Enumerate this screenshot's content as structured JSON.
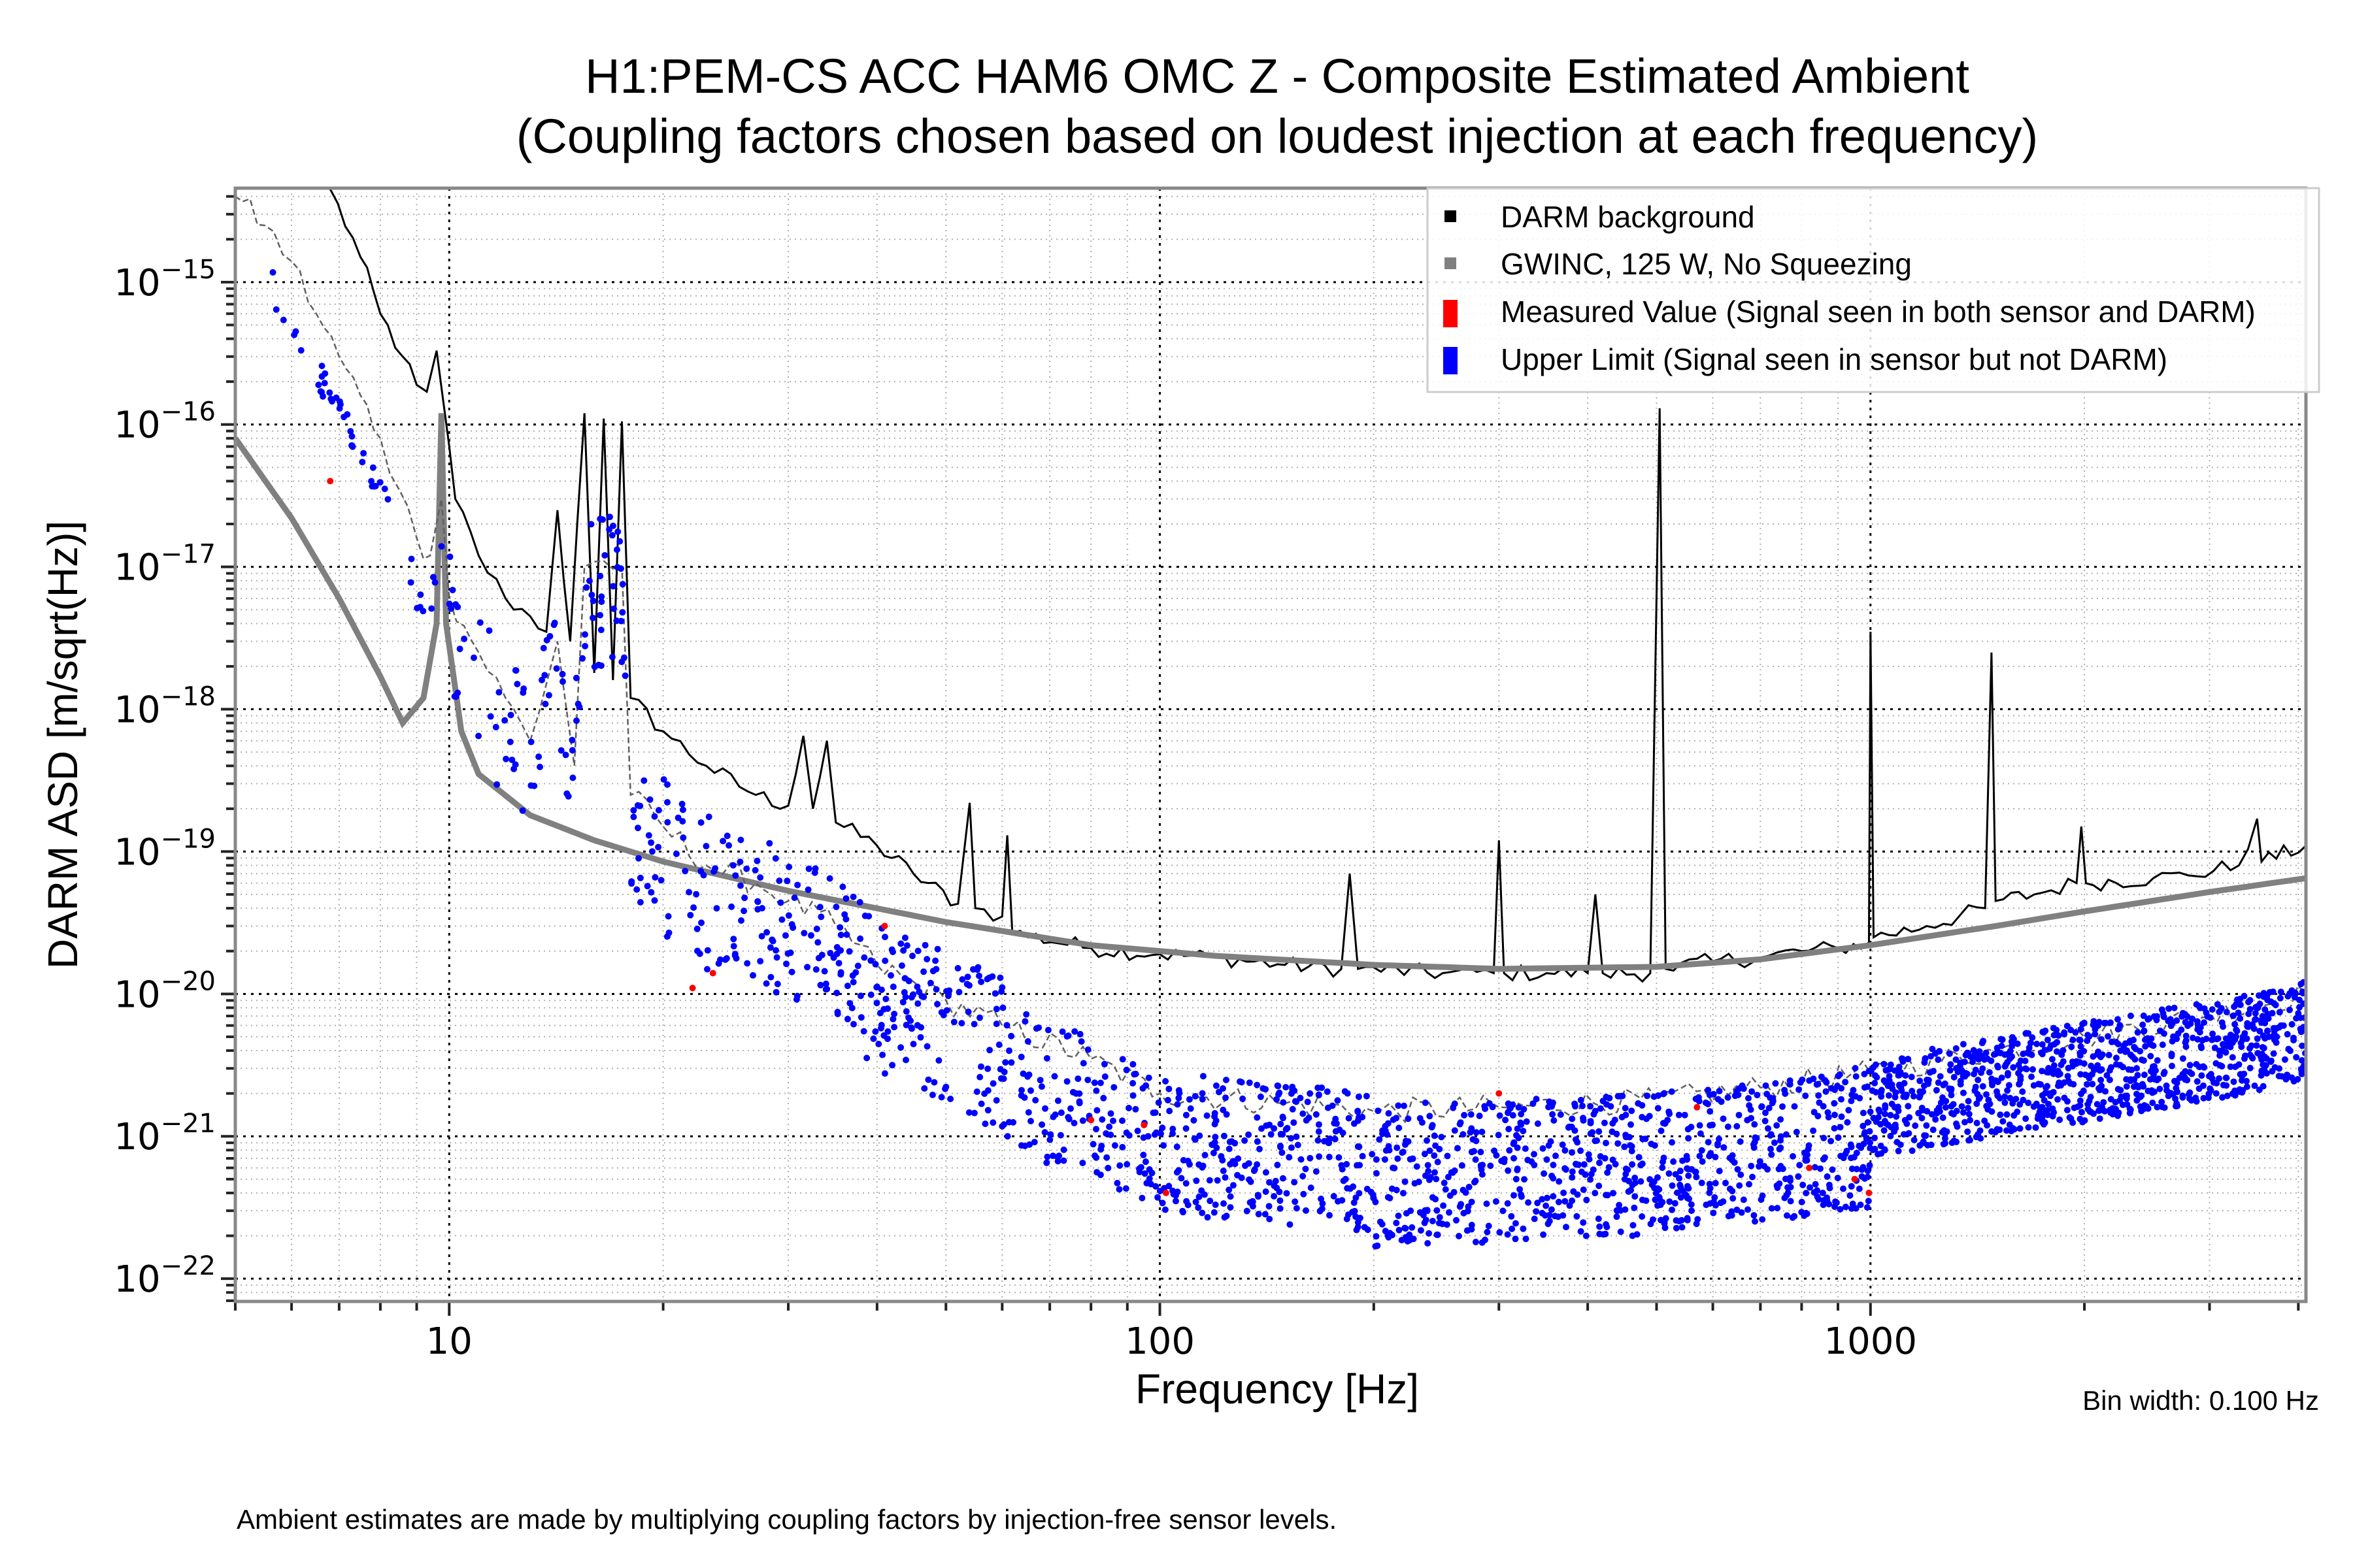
{
  "chart_data": {
    "type": "scatter",
    "title": "H1:PEM-CS ACC HAM6 OMC Z - Composite Estimated Ambient",
    "subtitle": "(Coupling factors chosen based on loudest injection at each frequency)",
    "xlabel": "Frequency [Hz]",
    "ylabel": "DARM ASD [m/sqrt(Hz)]",
    "xscale": "log",
    "yscale": "log",
    "xlim": [
      5,
      4100
    ],
    "ylim_exp": [
      -22.16,
      -14.34
    ],
    "x_ticks": [
      {
        "value": 10,
        "label": "10"
      },
      {
        "value": 100,
        "label": "100"
      },
      {
        "value": 1000,
        "label": "1000"
      }
    ],
    "y_ticks": [
      {
        "exp": -15,
        "base": "10",
        "sup": "−15"
      },
      {
        "exp": -16,
        "base": "10",
        "sup": "−16"
      },
      {
        "exp": -17,
        "base": "10",
        "sup": "−17"
      },
      {
        "exp": -18,
        "base": "10",
        "sup": "−18"
      },
      {
        "exp": -19,
        "base": "10",
        "sup": "−19"
      },
      {
        "exp": -20,
        "base": "10",
        "sup": "−20"
      },
      {
        "exp": -21,
        "base": "10",
        "sup": "−21"
      },
      {
        "exp": -22,
        "base": "10",
        "sup": "−22"
      }
    ],
    "grid": true,
    "legend_position": "top-right",
    "legend": [
      {
        "label": "DARM background",
        "color": "#000000",
        "kind": "line"
      },
      {
        "label": "GWINC, 125 W, No Squeezing",
        "color": "#808080",
        "kind": "line"
      },
      {
        "label": "Measured Value (Signal seen in both sensor and DARM)",
        "color": "#ff0000",
        "kind": "marker"
      },
      {
        "label": "Upper Limit (Signal seen in sensor but not DARM)",
        "color": "#0000ff",
        "kind": "marker"
      }
    ],
    "series": [
      {
        "name": "DARM background",
        "color": "#000000",
        "style": "solid-thin",
        "points": [
          [
            6.8,
            4.5e-15
          ],
          [
            7.5,
            1.5e-15
          ],
          [
            8.0,
            6e-16
          ],
          [
            8.6,
            3e-16
          ],
          [
            9.0,
            1.9e-16
          ],
          [
            9.3,
            1.7e-16
          ],
          [
            9.6,
            3.3e-16
          ],
          [
            9.8,
            1.5e-16
          ],
          [
            10.2,
            3e-17
          ],
          [
            11,
            1.2e-17
          ],
          [
            12,
            6e-18
          ],
          [
            13,
            4.5e-18
          ],
          [
            13.7,
            3.5e-18
          ],
          [
            14.2,
            2.5e-17
          ],
          [
            14.8,
            3e-18
          ],
          [
            15.5,
            1.2e-16
          ],
          [
            16.0,
            1.8e-18
          ],
          [
            16.5,
            1.1e-16
          ],
          [
            17.0,
            1.6e-18
          ],
          [
            17.5,
            1.05e-16
          ],
          [
            18,
            1.2e-18
          ],
          [
            20,
            7e-19
          ],
          [
            23,
            4e-19
          ],
          [
            27,
            2.5e-19
          ],
          [
            30,
            2.1e-19
          ],
          [
            31.5,
            6.5e-19
          ],
          [
            32.5,
            2e-19
          ],
          [
            34,
            6e-19
          ],
          [
            35,
            1.6e-19
          ],
          [
            40,
            1.1e-19
          ],
          [
            45,
            7e-20
          ],
          [
            52,
            4.3e-20
          ],
          [
            54,
            2.2e-19
          ],
          [
            55,
            4e-20
          ],
          [
            60,
            3.5e-20
          ],
          [
            61,
            1.3e-19
          ],
          [
            62,
            2.7e-20
          ],
          [
            80,
            2.1e-20
          ],
          [
            100,
            1.9e-20
          ],
          [
            120,
            1.8e-20
          ],
          [
            150,
            1.6e-20
          ],
          [
            180,
            1.5e-20
          ],
          [
            185,
            7e-20
          ],
          [
            190,
            1.5e-20
          ],
          [
            250,
            1.4e-20
          ],
          [
            295,
            1.4e-20
          ],
          [
            300,
            1.2e-19
          ],
          [
            305,
            1.4e-20
          ],
          [
            350,
            1.4e-20
          ],
          [
            400,
            1.4e-20
          ],
          [
            410,
            5e-20
          ],
          [
            420,
            1.4e-20
          ],
          [
            490,
            1.4e-20
          ],
          [
            505,
            1.3e-16
          ],
          [
            515,
            1.5e-20
          ],
          [
            600,
            1.7e-20
          ],
          [
            700,
            1.8e-20
          ],
          [
            800,
            2e-20
          ],
          [
            900,
            2.1e-20
          ],
          [
            995,
            2.3e-20
          ],
          [
            1000,
            3.5e-18
          ],
          [
            1010,
            2.5e-20
          ],
          [
            1200,
            3e-20
          ],
          [
            1450,
            4e-20
          ],
          [
            1480,
            2.5e-18
          ],
          [
            1500,
            4.5e-20
          ],
          [
            1700,
            5e-20
          ],
          [
            1950,
            6e-20
          ],
          [
            1980,
            1.5e-19
          ],
          [
            2010,
            6e-20
          ],
          [
            2500,
            6.5e-20
          ],
          [
            2800,
            6.8e-20
          ],
          [
            3300,
            8e-20
          ],
          [
            3500,
            1.7e-19
          ],
          [
            3550,
            8.5e-20
          ],
          [
            4100,
            1.1e-19
          ]
        ]
      },
      {
        "name": "GWINC, 125 W, No Squeezing",
        "color": "#808080",
        "style": "solid-thick",
        "points": [
          [
            5,
            8e-17
          ],
          [
            6,
            2.2e-17
          ],
          [
            7,
            6e-18
          ],
          [
            8,
            1.7e-18
          ],
          [
            8.6,
            8e-19
          ],
          [
            9.2,
            1.2e-18
          ],
          [
            9.6,
            4e-18
          ],
          [
            9.75,
            1.2e-16
          ],
          [
            9.9,
            4e-18
          ],
          [
            10.4,
            7e-19
          ],
          [
            11,
            3.5e-19
          ],
          [
            13,
            1.8e-19
          ],
          [
            16,
            1.2e-19
          ],
          [
            20,
            8.5e-20
          ],
          [
            30,
            5.3e-20
          ],
          [
            50,
            3.2e-20
          ],
          [
            80,
            2.2e-20
          ],
          [
            120,
            1.85e-20
          ],
          [
            200,
            1.6e-20
          ],
          [
            300,
            1.5e-20
          ],
          [
            500,
            1.55e-20
          ],
          [
            700,
            1.75e-20
          ],
          [
            1000,
            2.2e-20
          ],
          [
            1500,
            3e-20
          ],
          [
            2000,
            3.8e-20
          ],
          [
            3000,
            5.2e-20
          ],
          [
            4100,
            6.5e-20
          ]
        ]
      },
      {
        "name": "Estimated ambient (secondary dashed trace)",
        "color": "#606060",
        "style": "dashed",
        "points": [
          [
            5,
            4e-15
          ],
          [
            5.5,
            2.5e-15
          ],
          [
            6,
            1.4e-15
          ],
          [
            6.5,
            6e-16
          ],
          [
            7,
            3e-16
          ],
          [
            7.5,
            1.6e-16
          ],
          [
            8,
            8e-17
          ],
          [
            8.5,
            3.5e-17
          ],
          [
            9,
            1.6e-17
          ],
          [
            9.4,
            1.2e-17
          ],
          [
            9.75,
            3e-17
          ],
          [
            10,
            6e-18
          ],
          [
            11,
            2.5e-18
          ],
          [
            12,
            1.2e-18
          ],
          [
            13,
            6e-19
          ],
          [
            14.2,
            3e-18
          ],
          [
            15,
            4e-19
          ],
          [
            15.5,
            1e-17
          ],
          [
            16.5,
            1.1e-17
          ],
          [
            17.5,
            1e-17
          ],
          [
            18,
            2.5e-19
          ],
          [
            20,
            1.5e-19
          ],
          [
            23,
            8e-20
          ],
          [
            27,
            6e-20
          ],
          [
            30,
            4.5e-20
          ],
          [
            35,
            3e-20
          ],
          [
            40,
            1.6e-20
          ],
          [
            50,
            9e-21
          ],
          [
            60,
            6e-21
          ],
          [
            80,
            3.5e-21
          ],
          [
            100,
            2e-21
          ],
          [
            150,
            1.7e-21
          ],
          [
            200,
            1.5e-21
          ],
          [
            300,
            1.6e-21
          ],
          [
            500,
            1.8e-21
          ],
          [
            700,
            2.2e-21
          ],
          [
            1000,
            2.8e-21
          ],
          [
            1500,
            4e-21
          ],
          [
            2000,
            5e-21
          ],
          [
            3000,
            7e-21
          ],
          [
            4100,
            1e-20
          ]
        ]
      }
    ],
    "scatter_summary": [
      {
        "name": "Upper Limit",
        "color": "#0000ff",
        "approx_range": "5-4100 Hz; ~2e-15 at 5 Hz falling to ~1e-21 near 100 Hz, 1e-22 to 1e-20 above 100 Hz, ~3e-21 at 2-4 kHz"
      },
      {
        "name": "Measured Value",
        "color": "#ff0000",
        "approx_points": [
          [
            6.8,
            4e-17
          ],
          [
            22,
            1.1e-20
          ],
          [
            23.5,
            1.4e-20
          ],
          [
            41,
            3e-20
          ],
          [
            80,
            1.3e-21
          ],
          [
            95,
            1.2e-21
          ],
          [
            102,
            4e-22
          ],
          [
            300,
            2e-21
          ],
          [
            570,
            1.6e-21
          ],
          [
            820,
            6e-22
          ],
          [
            950,
            5e-22
          ],
          [
            995,
            4e-22
          ]
        ]
      }
    ],
    "annotations": [
      {
        "text": "Bin width: 0.100 Hz",
        "position": "bottom-right"
      }
    ]
  },
  "footer": {
    "note": "Ambient estimates are made by multiplying coupling factors by injection-free sensor levels."
  }
}
